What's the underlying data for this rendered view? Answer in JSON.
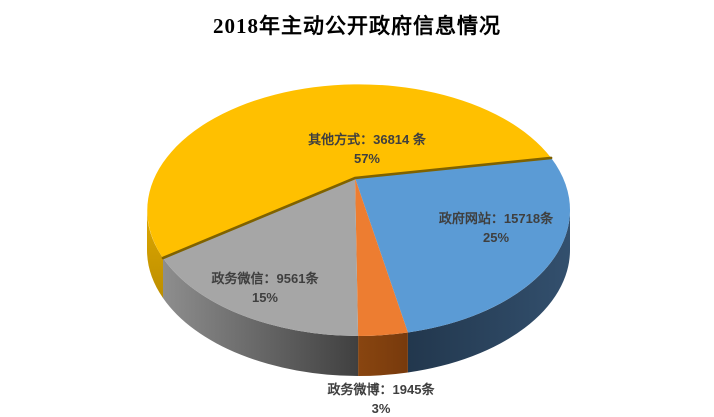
{
  "title": "2018年主动公开政府信息情况",
  "chart_data": {
    "type": "pie",
    "style": "3d-pie",
    "title": "2018年主动公开政府信息情况",
    "unit": "条",
    "legend": "none",
    "labels_on_chart": true,
    "slices": [
      {
        "name": "其他方式",
        "value": 36814,
        "percent": "57%",
        "color": "#FFC000",
        "label_line1": "其他方式：36814 条",
        "label_line2": "57%"
      },
      {
        "name": "政府网站",
        "value": 15718,
        "percent": "25%",
        "color": "#5B9BD5",
        "label_line1": "政府网站：15718条",
        "label_line2": "25%"
      },
      {
        "name": "政务微博",
        "value": 1945,
        "percent": "3%",
        "color": "#ED7D31",
        "label_line1": "政务微博：1945条",
        "label_line2": "3%"
      },
      {
        "name": "政务微信",
        "value": 9561,
        "percent": "15%",
        "color": "#A6A6A6",
        "label_line1": "政务微信：9561条",
        "label_line2": "15%"
      }
    ]
  }
}
